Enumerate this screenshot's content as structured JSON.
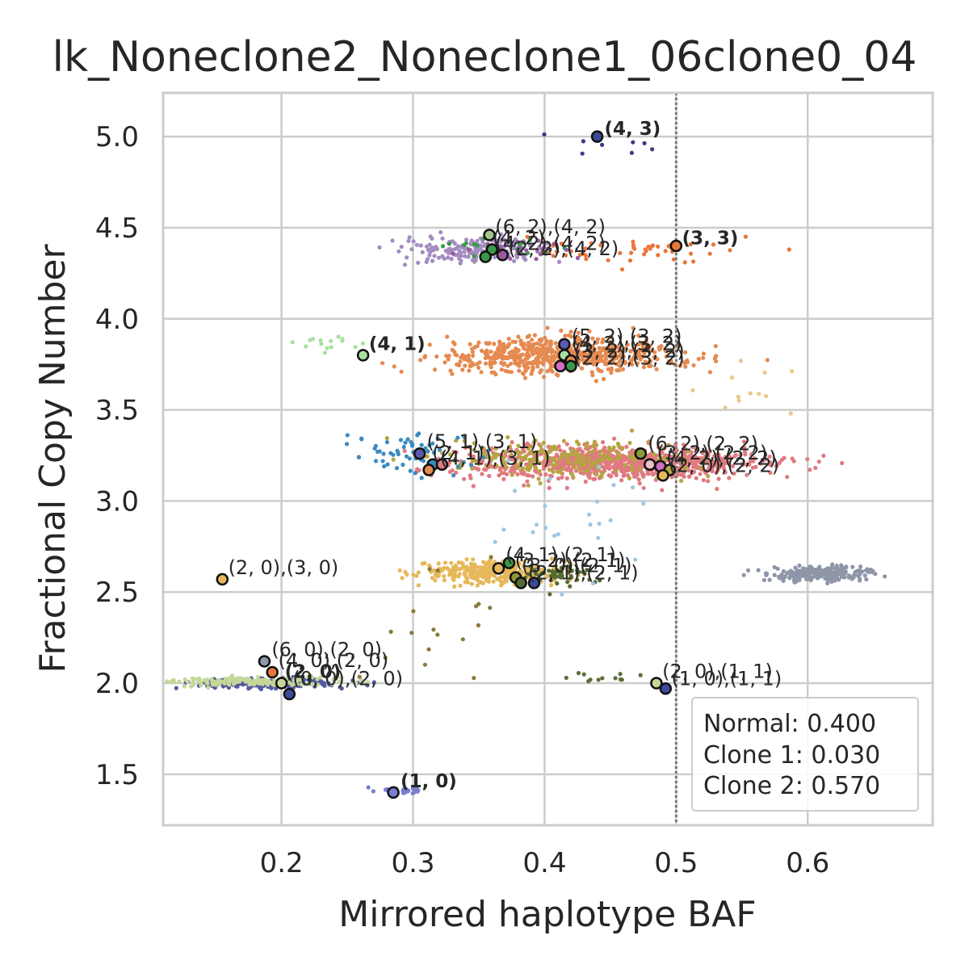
{
  "chart_data": {
    "type": "scatter",
    "title": "lk_Noneclone2_Noneclone1_06clone0_04",
    "xlabel": "Mirrored haplotype BAF",
    "ylabel": "Fractional Copy Number",
    "xlim": [
      0.11,
      0.695
    ],
    "ylim": [
      1.22,
      5.24
    ],
    "xticks": [
      "0.2",
      "0.3",
      "0.4",
      "0.5",
      "0.6"
    ],
    "yticks": [
      "1.5",
      "2.0",
      "2.5",
      "3.0",
      "3.5",
      "4.0",
      "4.5",
      "5.0"
    ],
    "grid": true,
    "reference_line_x": 0.5,
    "legend_position": "bottom-right",
    "legend": [
      "Normal: 0.400",
      "Clone 1: 0.030",
      "Clone 2: 0.570"
    ],
    "clusters": [
      {
        "x": 0.45,
        "y": 3.21,
        "sx": 0.055,
        "sy": 0.045,
        "n": 900,
        "color": "#e07a80"
      },
      {
        "x": 0.42,
        "y": 3.23,
        "sx": 0.05,
        "sy": 0.05,
        "n": 220,
        "color": "#b5a542"
      },
      {
        "x": 0.41,
        "y": 3.8,
        "sx": 0.045,
        "sy": 0.045,
        "n": 650,
        "color": "#e58a50"
      },
      {
        "x": 0.61,
        "y": 2.6,
        "sx": 0.02,
        "sy": 0.018,
        "n": 260,
        "color": "#8e96a8"
      },
      {
        "x": 0.36,
        "y": 2.61,
        "sx": 0.028,
        "sy": 0.03,
        "n": 320,
        "color": "#e6b85a"
      },
      {
        "x": 0.19,
        "y": 2.0,
        "sx": 0.025,
        "sy": 0.012,
        "n": 280,
        "color": "#545a9e"
      },
      {
        "x": 0.175,
        "y": 2.01,
        "sx": 0.035,
        "sy": 0.012,
        "n": 160,
        "color": "#c5d79a"
      },
      {
        "x": 0.345,
        "y": 4.38,
        "sx": 0.025,
        "sy": 0.035,
        "n": 180,
        "color": "#a48cc0"
      },
      {
        "x": 0.29,
        "y": 3.26,
        "sx": 0.025,
        "sy": 0.06,
        "n": 60,
        "color": "#3b8bc2"
      },
      {
        "x": 0.47,
        "y": 4.37,
        "sx": 0.04,
        "sy": 0.03,
        "n": 50,
        "color": "#e8773a"
      },
      {
        "x": 0.37,
        "y": 4.4,
        "sx": 0.02,
        "sy": 0.03,
        "n": 25,
        "color": "#3a9a4a"
      },
      {
        "x": 0.38,
        "y": 4.38,
        "sx": 0.02,
        "sy": 0.03,
        "n": 25,
        "color": "#9b59a0"
      },
      {
        "x": 0.415,
        "y": 2.6,
        "sx": 0.015,
        "sy": 0.03,
        "n": 50,
        "color": "#556b2f"
      },
      {
        "x": 0.29,
        "y": 1.41,
        "sx": 0.01,
        "sy": 0.008,
        "n": 30,
        "color": "#7b7fd0"
      },
      {
        "x": 0.235,
        "y": 3.85,
        "sx": 0.015,
        "sy": 0.03,
        "n": 15,
        "color": "#a8e0a0"
      },
      {
        "x": 0.45,
        "y": 2.03,
        "sx": 0.02,
        "sy": 0.015,
        "n": 12,
        "color": "#5a6e3a"
      },
      {
        "x": 0.55,
        "y": 3.65,
        "sx": 0.02,
        "sy": 0.1,
        "n": 12,
        "color": "#e8c98a"
      },
      {
        "x": 0.42,
        "y": 2.9,
        "sx": 0.03,
        "sy": 0.15,
        "n": 25,
        "color": "#a0c8e0"
      },
      {
        "x": 0.44,
        "y": 4.95,
        "sx": 0.03,
        "sy": 0.04,
        "n": 8,
        "color": "#3a3a8a"
      },
      {
        "x": 0.31,
        "y": 2.3,
        "sx": 0.03,
        "sy": 0.2,
        "n": 18,
        "color": "#8a7a3a"
      }
    ],
    "highlight_points": [
      {
        "x": 0.44,
        "y": 5.0,
        "color": "#3d4a99"
      },
      {
        "x": 0.358,
        "y": 4.46,
        "color": "#a4c68a"
      },
      {
        "x": 0.36,
        "y": 4.38,
        "color": "#3a9a4a"
      },
      {
        "x": 0.355,
        "y": 4.34,
        "color": "#3a9a4a"
      },
      {
        "x": 0.368,
        "y": 4.35,
        "color": "#9b59a0"
      },
      {
        "x": 0.5,
        "y": 4.4,
        "color": "#e8773a"
      },
      {
        "x": 0.262,
        "y": 3.8,
        "color": "#a8e0a0"
      },
      {
        "x": 0.415,
        "y": 3.86,
        "color": "#5a5ab0"
      },
      {
        "x": 0.415,
        "y": 3.8,
        "color": "#a8e0a0"
      },
      {
        "x": 0.42,
        "y": 3.77,
        "color": "#e58a50"
      },
      {
        "x": 0.412,
        "y": 3.74,
        "color": "#d070c0"
      },
      {
        "x": 0.42,
        "y": 3.74,
        "color": "#3a9a4a"
      },
      {
        "x": 0.305,
        "y": 3.26,
        "color": "#5a5ab0"
      },
      {
        "x": 0.315,
        "y": 3.2,
        "color": "#3b8bc2"
      },
      {
        "x": 0.322,
        "y": 3.2,
        "color": "#e07a80"
      },
      {
        "x": 0.312,
        "y": 3.17,
        "color": "#e58a50"
      },
      {
        "x": 0.473,
        "y": 3.26,
        "color": "#8a9a3a"
      },
      {
        "x": 0.48,
        "y": 3.2,
        "color": "#e8c0c8"
      },
      {
        "x": 0.488,
        "y": 3.19,
        "color": "#d070c0"
      },
      {
        "x": 0.495,
        "y": 3.17,
        "color": "#b5a542"
      },
      {
        "x": 0.49,
        "y": 3.14,
        "color": "#e6b85a"
      },
      {
        "x": 0.365,
        "y": 2.63,
        "color": "#e6b85a"
      },
      {
        "x": 0.373,
        "y": 2.66,
        "color": "#3a9a4a"
      },
      {
        "x": 0.378,
        "y": 2.58,
        "color": "#8a9a3a"
      },
      {
        "x": 0.382,
        "y": 2.55,
        "color": "#556b2f"
      },
      {
        "x": 0.392,
        "y": 2.55,
        "color": "#3d4a99"
      },
      {
        "x": 0.155,
        "y": 2.57,
        "color": "#e6b85a"
      },
      {
        "x": 0.187,
        "y": 2.12,
        "color": "#8e96a8"
      },
      {
        "x": 0.193,
        "y": 2.06,
        "color": "#e8773a"
      },
      {
        "x": 0.2,
        "y": 2.0,
        "color": "#c5d79a"
      },
      {
        "x": 0.206,
        "y": 1.94,
        "color": "#3d4a99"
      },
      {
        "x": 0.485,
        "y": 2.0,
        "color": "#c5d79a"
      },
      {
        "x": 0.492,
        "y": 1.97,
        "color": "#3d4a99"
      },
      {
        "x": 0.285,
        "y": 1.4,
        "color": "#7b7fd0"
      }
    ],
    "annotations": [
      {
        "text": "(4, 3)",
        "x": 0.443,
        "y": 5.0,
        "bold": true
      },
      {
        "text": "(6, 2),(4, 2)",
        "x": 0.36,
        "y": 4.46,
        "bold": false
      },
      {
        "text": "(4, 2)",
        "x": 0.358,
        "y": 4.4,
        "bold": false
      },
      {
        "text": "(4, 2),(4, 2)",
        "x": 0.36,
        "y": 4.37,
        "bold": false
      },
      {
        "text": "(2, 2),(4, 2)",
        "x": 0.37,
        "y": 4.34,
        "bold": false
      },
      {
        "text": "(3, 3)",
        "x": 0.502,
        "y": 4.4,
        "bold": true
      },
      {
        "text": "(4, 1)",
        "x": 0.264,
        "y": 3.82,
        "bold": true
      },
      {
        "text": "(5, 2),(3, 2)",
        "x": 0.418,
        "y": 3.86,
        "bold": false
      },
      {
        "text": "(4, 2),(3, 2)",
        "x": 0.418,
        "y": 3.82,
        "bold": false
      },
      {
        "text": "(3, 2),(3, 2)",
        "x": 0.42,
        "y": 3.78,
        "bold": false
      },
      {
        "text": "(2, 2),(3, 2)",
        "x": 0.42,
        "y": 3.74,
        "bold": false
      },
      {
        "text": "(5, 1),(3, 1)",
        "x": 0.308,
        "y": 3.28,
        "bold": false
      },
      {
        "text": "(2, 1)",
        "x": 0.312,
        "y": 3.22,
        "bold": false
      },
      {
        "text": "(4, 1),(3, 1)",
        "x": 0.318,
        "y": 3.19,
        "bold": false
      },
      {
        "text": "(6, 2),(2, 2)",
        "x": 0.476,
        "y": 3.27,
        "bold": false
      },
      {
        "text": "(3, 2),(2, 2)",
        "x": 0.483,
        "y": 3.22,
        "bold": false
      },
      {
        "text": "(4, 2),(2, 2)",
        "x": 0.49,
        "y": 3.19,
        "bold": false
      },
      {
        "text": "(2, 0),(2, 2)",
        "x": 0.492,
        "y": 3.15,
        "bold": false
      },
      {
        "text": "(4, 1),(2, 1)",
        "x": 0.368,
        "y": 2.66,
        "bold": false
      },
      {
        "text": "(3, 2),(2, 1)",
        "x": 0.375,
        "y": 2.63,
        "bold": false
      },
      {
        "text": "(3, 0),(2, 1)",
        "x": 0.38,
        "y": 2.6,
        "bold": false
      },
      {
        "text": "(2, 1),(2, 1)",
        "x": 0.385,
        "y": 2.56,
        "bold": false
      },
      {
        "text": "(2, 0),(3, 0)",
        "x": 0.157,
        "y": 2.59,
        "bold": false
      },
      {
        "text": "(6, 0),(2, 0)",
        "x": 0.19,
        "y": 2.14,
        "bold": false
      },
      {
        "text": "(4, 0),(2, 0)",
        "x": 0.195,
        "y": 2.08,
        "bold": false
      },
      {
        "text": "(2, 0)",
        "x": 0.2,
        "y": 2.02,
        "bold": true
      },
      {
        "text": "(0, 0),(2, 0)",
        "x": 0.206,
        "y": 1.98,
        "bold": false
      },
      {
        "text": "(2, 0),(1, 1)",
        "x": 0.487,
        "y": 2.02,
        "bold": false
      },
      {
        "text": "(1, 0),(1, 1)",
        "x": 0.494,
        "y": 1.98,
        "bold": false
      },
      {
        "text": "(1, 0)",
        "x": 0.288,
        "y": 1.42,
        "bold": true
      }
    ]
  }
}
